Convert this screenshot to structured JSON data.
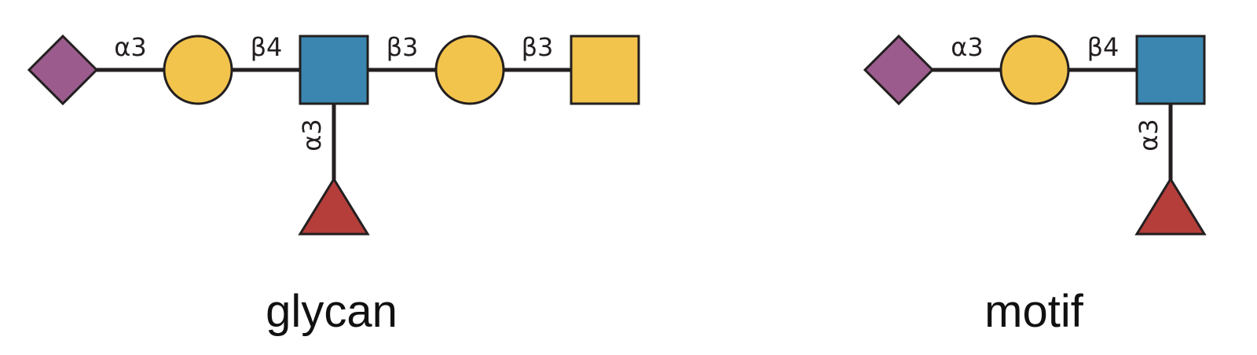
{
  "colors": {
    "sialic_acid": "#9b5c8d",
    "galactose": "#f2c44c",
    "glcnac": "#3a86b0",
    "galnac": "#f2c44c",
    "fucose": "#b53e3a",
    "line": "#231f20"
  },
  "glycan": {
    "caption": "glycan",
    "residues": [
      {
        "name": "sialic-acid",
        "shape": "diamond"
      },
      {
        "name": "galactose",
        "shape": "circle"
      },
      {
        "name": "glcnac",
        "shape": "square"
      },
      {
        "name": "galactose",
        "shape": "circle"
      },
      {
        "name": "galnac",
        "shape": "square"
      },
      {
        "name": "fucose",
        "shape": "triangle"
      }
    ],
    "linkages": [
      "α3",
      "β4",
      "β3",
      "β3",
      "α3"
    ]
  },
  "motif": {
    "caption": "motif",
    "residues": [
      {
        "name": "sialic-acid",
        "shape": "diamond"
      },
      {
        "name": "galactose",
        "shape": "circle"
      },
      {
        "name": "glcnac",
        "shape": "square"
      },
      {
        "name": "fucose",
        "shape": "triangle"
      }
    ],
    "linkages": [
      "α3",
      "β4",
      "α3"
    ]
  }
}
